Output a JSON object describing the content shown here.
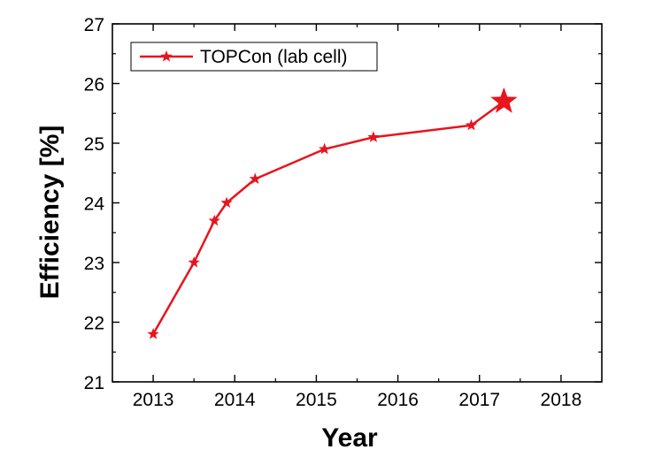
{
  "chart_data": {
    "type": "line",
    "title": "",
    "xlabel": "Year",
    "ylabel": "Efficiency [%]",
    "xlim": [
      2012.5,
      2018.5
    ],
    "ylim": [
      21,
      27
    ],
    "xticks": [
      2013,
      2014,
      2015,
      2016,
      2017,
      2018
    ],
    "yticks": [
      21,
      22,
      23,
      24,
      25,
      26,
      27
    ],
    "grid": false,
    "legend_position": "top-left",
    "series": [
      {
        "name": "TOPCon (lab cell)",
        "color": "#e8141e",
        "marker": "star",
        "x": [
          2013.0,
          2013.5,
          2013.75,
          2013.9,
          2014.25,
          2015.1,
          2015.7,
          2016.9
        ],
        "y": [
          21.8,
          23.0,
          23.7,
          24.0,
          24.4,
          24.9,
          25.1,
          25.3
        ]
      }
    ],
    "highlight": {
      "x": 2017.3,
      "y": 25.7,
      "marker": "large-star",
      "color": "#e8141e"
    }
  }
}
